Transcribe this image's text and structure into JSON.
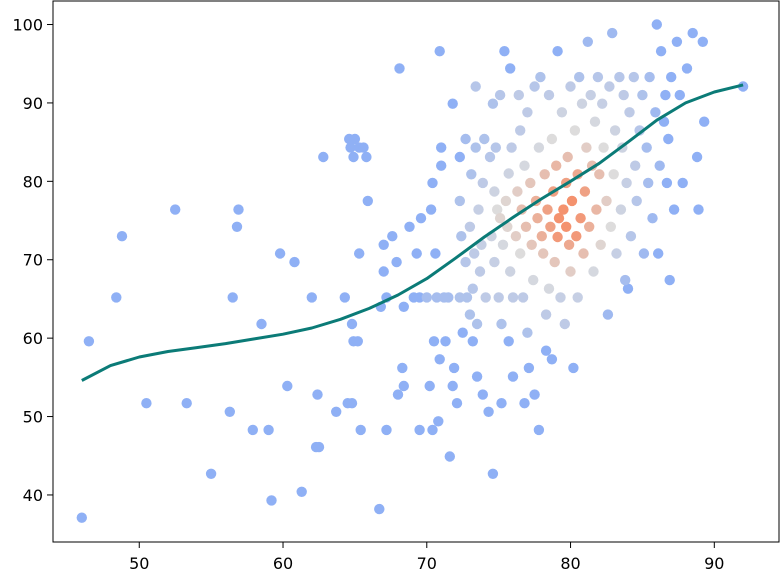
{
  "chart_data": {
    "type": "scatter",
    "title": "",
    "xlabel": "",
    "ylabel": "",
    "xlim": [
      44,
      94.5
    ],
    "ylim": [
      34,
      103
    ],
    "xticks": [
      50,
      60,
      70,
      80,
      90
    ],
    "yticks": [
      40,
      50,
      60,
      70,
      80,
      90,
      100
    ],
    "grid": false,
    "colors": {
      "low_density": "#8fb0f5",
      "mid_density": "#dddcdc",
      "high_density": "#f4926e",
      "trend_line": "#0b7b77"
    },
    "color_encoding": "point density (coolwarm)",
    "points": [
      [
        46.0,
        37.1,
        0
      ],
      [
        46.5,
        59.6,
        0
      ],
      [
        48.4,
        65.2,
        0
      ],
      [
        48.8,
        73.0,
        0
      ],
      [
        50.5,
        51.7,
        0
      ],
      [
        52.5,
        76.4,
        0
      ],
      [
        53.3,
        51.7,
        0
      ],
      [
        55.0,
        42.7,
        0
      ],
      [
        56.3,
        50.6,
        0
      ],
      [
        56.5,
        65.2,
        0
      ],
      [
        56.8,
        74.2,
        0
      ],
      [
        56.9,
        76.4,
        0
      ],
      [
        57.9,
        48.3,
        0
      ],
      [
        58.5,
        61.8,
        0
      ],
      [
        59.0,
        48.3,
        0
      ],
      [
        59.2,
        39.3,
        0
      ],
      [
        59.8,
        70.8,
        0
      ],
      [
        60.3,
        53.9,
        0
      ],
      [
        60.8,
        69.7,
        0
      ],
      [
        61.3,
        40.4,
        0
      ],
      [
        62.0,
        65.2,
        0
      ],
      [
        62.3,
        46.1,
        0
      ],
      [
        62.4,
        52.8,
        0
      ],
      [
        62.5,
        46.1,
        0
      ],
      [
        62.8,
        83.1,
        0
      ],
      [
        63.7,
        50.6,
        0
      ],
      [
        64.3,
        65.2,
        0
      ],
      [
        64.5,
        51.7,
        0
      ],
      [
        64.6,
        85.4,
        0
      ],
      [
        64.7,
        84.3,
        0
      ],
      [
        64.8,
        51.7,
        0
      ],
      [
        64.8,
        61.8,
        0
      ],
      [
        64.9,
        83.1,
        0
      ],
      [
        64.9,
        59.6,
        0
      ],
      [
        65.0,
        85.4,
        0
      ],
      [
        65.2,
        59.6,
        0
      ],
      [
        65.3,
        70.8,
        0
      ],
      [
        65.3,
        84.3,
        0
      ],
      [
        65.4,
        48.3,
        0
      ],
      [
        65.6,
        84.3,
        0
      ],
      [
        65.8,
        83.1,
        0
      ],
      [
        65.9,
        77.5,
        0
      ],
      [
        66.7,
        38.2,
        0
      ],
      [
        66.8,
        64.0,
        0
      ],
      [
        67.0,
        68.5,
        0
      ],
      [
        67.0,
        71.9,
        0
      ],
      [
        67.2,
        65.2,
        0
      ],
      [
        67.2,
        48.3,
        0
      ],
      [
        67.6,
        73.0,
        0
      ],
      [
        67.9,
        69.7,
        0
      ],
      [
        68.0,
        52.8,
        0
      ],
      [
        68.1,
        94.4,
        0
      ],
      [
        68.3,
        56.2,
        0
      ],
      [
        68.4,
        53.9,
        0
      ],
      [
        68.4,
        64.0,
        0
      ],
      [
        68.8,
        74.2,
        0
      ],
      [
        69.1,
        65.2,
        0
      ],
      [
        69.3,
        70.8,
        0
      ],
      [
        69.5,
        48.3,
        0
      ],
      [
        69.5,
        65.2,
        0
      ],
      [
        69.6,
        75.3,
        0
      ],
      [
        70.0,
        65.2,
        0.15
      ],
      [
        70.2,
        53.9,
        0
      ],
      [
        70.3,
        76.4,
        0
      ],
      [
        70.4,
        48.3,
        0
      ],
      [
        70.4,
        79.8,
        0
      ],
      [
        70.5,
        59.6,
        0
      ],
      [
        70.6,
        70.8,
        0
      ],
      [
        70.7,
        65.2,
        0.15
      ],
      [
        70.8,
        49.4,
        0
      ],
      [
        70.9,
        96.6,
        0
      ],
      [
        70.9,
        57.3,
        0
      ],
      [
        71.0,
        84.3,
        0
      ],
      [
        71.0,
        82.0,
        0
      ],
      [
        71.2,
        65.2,
        0.15
      ],
      [
        71.3,
        59.6,
        0
      ],
      [
        71.5,
        65.2,
        0.15
      ],
      [
        71.6,
        44.9,
        0
      ],
      [
        71.8,
        89.9,
        0
      ],
      [
        71.8,
        53.9,
        0
      ],
      [
        71.9,
        56.2,
        0
      ],
      [
        72.1,
        51.7,
        0
      ],
      [
        72.3,
        83.1,
        0
      ],
      [
        72.3,
        65.2,
        0.2
      ],
      [
        72.3,
        77.5,
        0.2
      ],
      [
        72.4,
        73.0,
        0.2
      ],
      [
        72.5,
        60.7,
        0
      ],
      [
        72.7,
        69.7,
        0.25
      ],
      [
        72.7,
        85.4,
        0.15
      ],
      [
        72.8,
        65.2,
        0.2
      ],
      [
        73.0,
        63.0,
        0.2
      ],
      [
        73.0,
        74.2,
        0.3
      ],
      [
        73.1,
        80.9,
        0.2
      ],
      [
        73.2,
        59.6,
        0
      ],
      [
        73.2,
        66.3,
        0.25
      ],
      [
        73.3,
        70.8,
        0.3
      ],
      [
        73.4,
        84.3,
        0.2
      ],
      [
        73.4,
        92.1,
        0.25
      ],
      [
        73.5,
        61.8,
        0.2
      ],
      [
        73.5,
        55.1,
        0
      ],
      [
        73.6,
        76.4,
        0.35
      ],
      [
        73.7,
        68.5,
        0.3
      ],
      [
        73.8,
        71.9,
        0.35
      ],
      [
        73.9,
        79.8,
        0.3
      ],
      [
        73.9,
        52.8,
        0
      ],
      [
        74.0,
        85.4,
        0.2
      ],
      [
        74.1,
        65.2,
        0.3
      ],
      [
        74.3,
        50.6,
        0
      ],
      [
        74.4,
        83.1,
        0.25
      ],
      [
        74.5,
        73.0,
        0.4
      ],
      [
        74.6,
        42.7,
        0
      ],
      [
        74.6,
        89.9,
        0.2
      ],
      [
        74.7,
        69.7,
        0.35
      ],
      [
        74.7,
        78.7,
        0.4
      ],
      [
        74.8,
        84.3,
        0.25
      ],
      [
        74.9,
        76.4,
        0.5
      ],
      [
        75.0,
        65.2,
        0.3
      ],
      [
        75.1,
        91.0,
        0.25
      ],
      [
        75.1,
        75.3,
        0.55
      ],
      [
        75.2,
        61.8,
        0.2
      ],
      [
        75.2,
        51.7,
        0
      ],
      [
        75.3,
        71.9,
        0.45
      ],
      [
        75.4,
        96.6,
        0
      ],
      [
        75.5,
        77.5,
        0.55
      ],
      [
        75.6,
        74.2,
        0.55
      ],
      [
        75.7,
        81.0,
        0.4
      ],
      [
        75.7,
        59.6,
        0
      ],
      [
        75.8,
        94.4,
        0
      ],
      [
        75.8,
        68.5,
        0.4
      ],
      [
        75.9,
        84.3,
        0.3
      ],
      [
        76.0,
        65.2,
        0.3
      ],
      [
        76.0,
        55.1,
        0
      ],
      [
        76.2,
        73.0,
        0.6
      ],
      [
        76.3,
        78.7,
        0.6
      ],
      [
        76.4,
        91.0,
        0.3
      ],
      [
        76.5,
        86.5,
        0.3
      ],
      [
        76.5,
        70.8,
        0.5
      ],
      [
        76.6,
        76.4,
        0.7
      ],
      [
        76.7,
        65.2,
        0.3
      ],
      [
        76.8,
        51.7,
        0
      ],
      [
        76.8,
        82.0,
        0.45
      ],
      [
        76.9,
        74.2,
        0.7
      ],
      [
        77.0,
        60.7,
        0.2
      ],
      [
        77.0,
        88.8,
        0.3
      ],
      [
        77.1,
        56.2,
        0
      ],
      [
        77.2,
        79.8,
        0.65
      ],
      [
        77.3,
        71.9,
        0.65
      ],
      [
        77.4,
        67.4,
        0.45
      ],
      [
        77.5,
        52.8,
        0
      ],
      [
        77.5,
        92.1,
        0.25
      ],
      [
        77.6,
        77.5,
        0.8
      ],
      [
        77.7,
        75.3,
        0.8
      ],
      [
        77.8,
        48.3,
        0
      ],
      [
        77.8,
        84.3,
        0.45
      ],
      [
        77.9,
        93.3,
        0.2
      ],
      [
        78.0,
        73.0,
        0.8
      ],
      [
        78.1,
        70.8,
        0.65
      ],
      [
        78.2,
        80.9,
        0.7
      ],
      [
        78.3,
        63.0,
        0.3
      ],
      [
        78.3,
        58.4,
        0
      ],
      [
        78.4,
        76.4,
        0.9
      ],
      [
        78.5,
        91.0,
        0.3
      ],
      [
        78.5,
        66.3,
        0.45
      ],
      [
        78.6,
        74.2,
        0.9
      ],
      [
        78.7,
        57.3,
        0
      ],
      [
        78.7,
        85.4,
        0.5
      ],
      [
        78.8,
        78.7,
        0.9
      ],
      [
        78.9,
        69.7,
        0.65
      ],
      [
        79.0,
        82.0,
        0.75
      ],
      [
        79.1,
        96.6,
        0
      ],
      [
        79.1,
        72.9,
        0.95
      ],
      [
        79.2,
        75.3,
        1.0
      ],
      [
        79.3,
        65.2,
        0.35
      ],
      [
        79.4,
        88.8,
        0.4
      ],
      [
        79.5,
        76.4,
        1.0
      ],
      [
        79.6,
        61.8,
        0.3
      ],
      [
        79.7,
        79.8,
        0.9
      ],
      [
        79.7,
        74.2,
        1.0
      ],
      [
        79.8,
        83.1,
        0.7
      ],
      [
        79.9,
        71.9,
        0.85
      ],
      [
        80.0,
        92.1,
        0.3
      ],
      [
        80.0,
        68.5,
        0.6
      ],
      [
        80.1,
        77.5,
        1.0
      ],
      [
        80.2,
        56.2,
        0
      ],
      [
        80.3,
        86.5,
        0.5
      ],
      [
        80.4,
        73.0,
        0.95
      ],
      [
        80.5,
        80.9,
        0.85
      ],
      [
        80.5,
        65.2,
        0.35
      ],
      [
        80.6,
        93.3,
        0.2
      ],
      [
        80.7,
        75.3,
        0.95
      ],
      [
        80.8,
        89.9,
        0.4
      ],
      [
        80.9,
        70.8,
        0.7
      ],
      [
        81.0,
        78.7,
        0.9
      ],
      [
        81.1,
        84.3,
        0.6
      ],
      [
        81.2,
        97.8,
        0.1
      ],
      [
        81.3,
        74.2,
        0.8
      ],
      [
        81.4,
        91.0,
        0.35
      ],
      [
        81.5,
        82.0,
        0.7
      ],
      [
        81.6,
        68.5,
        0.45
      ],
      [
        81.7,
        87.6,
        0.45
      ],
      [
        81.8,
        76.4,
        0.75
      ],
      [
        81.9,
        93.3,
        0.25
      ],
      [
        82.0,
        80.9,
        0.7
      ],
      [
        82.1,
        71.9,
        0.55
      ],
      [
        82.2,
        89.9,
        0.35
      ],
      [
        82.3,
        84.3,
        0.5
      ],
      [
        82.5,
        77.5,
        0.6
      ],
      [
        82.6,
        63.0,
        0.1
      ],
      [
        82.7,
        92.1,
        0.3
      ],
      [
        82.8,
        74.2,
        0.5
      ],
      [
        82.9,
        98.9,
        0.1
      ],
      [
        83.0,
        80.9,
        0.5
      ],
      [
        83.1,
        86.5,
        0.4
      ],
      [
        83.2,
        70.8,
        0.35
      ],
      [
        83.4,
        93.3,
        0.25
      ],
      [
        83.5,
        76.4,
        0.4
      ],
      [
        83.6,
        84.3,
        0.4
      ],
      [
        83.7,
        91.0,
        0.3
      ],
      [
        83.8,
        67.4,
        0.15
      ],
      [
        83.9,
        79.8,
        0.35
      ],
      [
        84.0,
        66.3,
        0
      ],
      [
        84.1,
        88.8,
        0.3
      ],
      [
        84.2,
        73.0,
        0.25
      ],
      [
        84.4,
        93.3,
        0.25
      ],
      [
        84.5,
        82.0,
        0.3
      ],
      [
        84.6,
        77.5,
        0.25
      ],
      [
        84.8,
        86.5,
        0.25
      ],
      [
        85.0,
        91.0,
        0.2
      ],
      [
        85.1,
        70.8,
        0.1
      ],
      [
        85.3,
        84.3,
        0.15
      ],
      [
        85.4,
        79.8,
        0.15
      ],
      [
        85.5,
        93.3,
        0.15
      ],
      [
        85.7,
        75.3,
        0.1
      ],
      [
        85.9,
        88.8,
        0.1
      ],
      [
        86.0,
        100.0,
        0
      ],
      [
        86.1,
        70.8,
        0
      ],
      [
        86.2,
        82.0,
        0.1
      ],
      [
        86.3,
        96.6,
        0
      ],
      [
        86.5,
        87.6,
        0
      ],
      [
        86.6,
        91.0,
        0
      ],
      [
        86.7,
        79.8,
        0
      ],
      [
        86.8,
        85.4,
        0
      ],
      [
        86.9,
        67.4,
        0
      ],
      [
        87.0,
        93.3,
        0
      ],
      [
        87.2,
        76.4,
        0
      ],
      [
        87.4,
        97.8,
        0
      ],
      [
        87.6,
        91.0,
        0
      ],
      [
        87.8,
        79.8,
        0
      ],
      [
        88.1,
        94.4,
        0
      ],
      [
        88.5,
        98.9,
        0
      ],
      [
        88.8,
        83.1,
        0
      ],
      [
        88.9,
        76.4,
        0
      ],
      [
        89.2,
        97.8,
        0
      ],
      [
        89.3,
        87.6,
        0
      ],
      [
        92.0,
        92.1,
        0
      ]
    ],
    "trend_line": [
      [
        46.0,
        54.6
      ],
      [
        48.0,
        56.5
      ],
      [
        50.0,
        57.6
      ],
      [
        52.0,
        58.3
      ],
      [
        54.0,
        58.8
      ],
      [
        56.0,
        59.3
      ],
      [
        58.0,
        59.9
      ],
      [
        60.0,
        60.5
      ],
      [
        62.0,
        61.3
      ],
      [
        64.0,
        62.4
      ],
      [
        66.0,
        63.8
      ],
      [
        68.0,
        65.5
      ],
      [
        70.0,
        67.6
      ],
      [
        72.0,
        70.2
      ],
      [
        74.0,
        72.9
      ],
      [
        76.0,
        75.4
      ],
      [
        78.0,
        77.8
      ],
      [
        80.0,
        80.0
      ],
      [
        82.0,
        82.3
      ],
      [
        84.0,
        85.0
      ],
      [
        86.0,
        87.8
      ],
      [
        88.0,
        90.0
      ],
      [
        90.0,
        91.4
      ],
      [
        92.0,
        92.3
      ]
    ]
  }
}
